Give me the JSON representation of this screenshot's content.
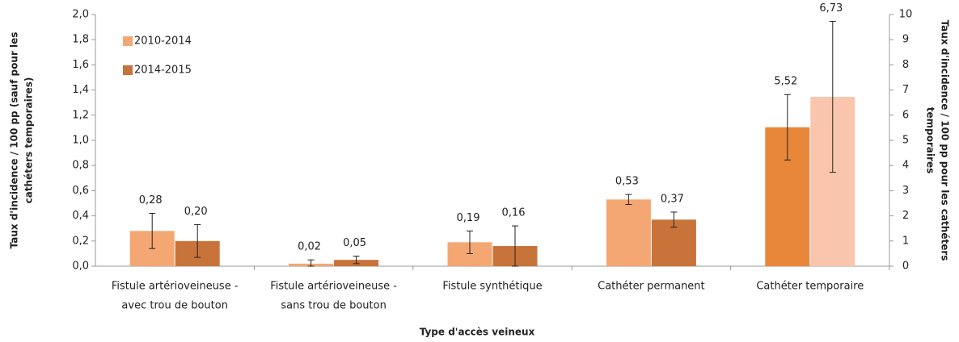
{
  "chart_data": {
    "type": "bar",
    "x_label": "Type d'accès veineux",
    "y_label": [
      "Taux d'incidence / 100 pp (sauf pour les",
      "cathéters temporaires)"
    ],
    "y2_label": [
      "Taux d'incidence / 100 pp pour les cathéters",
      "temporaires"
    ],
    "categories": [
      [
        "Fistule artérioveineuse -",
        "avec trou de bouton"
      ],
      [
        "Fistule artérioveineuse -",
        "sans trou de bouton"
      ],
      [
        "Fistule synthétique"
      ],
      [
        "Cathéter permanent"
      ],
      [
        "Cathéter temporaire"
      ]
    ],
    "category_axis": [
      "y",
      "y",
      "y",
      "y",
      "y2"
    ],
    "series": [
      {
        "name": "2010-2014",
        "color": "#f4a772",
        "colors": [
          "#f4a772",
          "#f4a772",
          "#f4a772",
          "#f4a772",
          "#e8873a"
        ],
        "values": [
          0.28,
          0.02,
          0.19,
          0.53,
          5.52
        ],
        "value_labels": [
          "0,28",
          "0,02",
          "0,19",
          "0,53",
          "5,52"
        ],
        "errors": [
          0.14,
          0.03,
          0.09,
          0.04,
          1.3
        ]
      },
      {
        "name": "2014-2015",
        "color": "#c8733a",
        "colors": [
          "#c8733a",
          "#c8733a",
          "#c8733a",
          "#c8733a",
          "#f9c6ad"
        ],
        "values": [
          0.2,
          0.05,
          0.16,
          0.37,
          6.73
        ],
        "value_labels": [
          "0,20",
          "0,05",
          "0,16",
          "0,37",
          "6,73"
        ],
        "errors": [
          0.13,
          0.03,
          0.16,
          0.06,
          3.0
        ]
      }
    ],
    "ylim": [
      0,
      2
    ],
    "yticks": [
      {
        "value": 0,
        "label": "0,0"
      },
      {
        "value": 0.2,
        "label": "0,2"
      },
      {
        "value": 0.4,
        "label": "0,4"
      },
      {
        "value": 0.6,
        "label": "0,6"
      },
      {
        "value": 0.8,
        "label": "0,8"
      },
      {
        "value": 1.0,
        "label": "1,0"
      },
      {
        "value": 1.2,
        "label": "1,2"
      },
      {
        "value": 1.4,
        "label": "1,4"
      },
      {
        "value": 1.6,
        "label": "1,6"
      },
      {
        "value": 1.8,
        "label": "1,8"
      },
      {
        "value": 2.0,
        "label": "2,0"
      }
    ],
    "y2lim": [
      0,
      10
    ],
    "y2ticks": [
      0,
      1,
      2,
      3,
      4,
      5,
      6,
      7,
      8,
      9,
      10
    ],
    "legend": "top-left"
  }
}
